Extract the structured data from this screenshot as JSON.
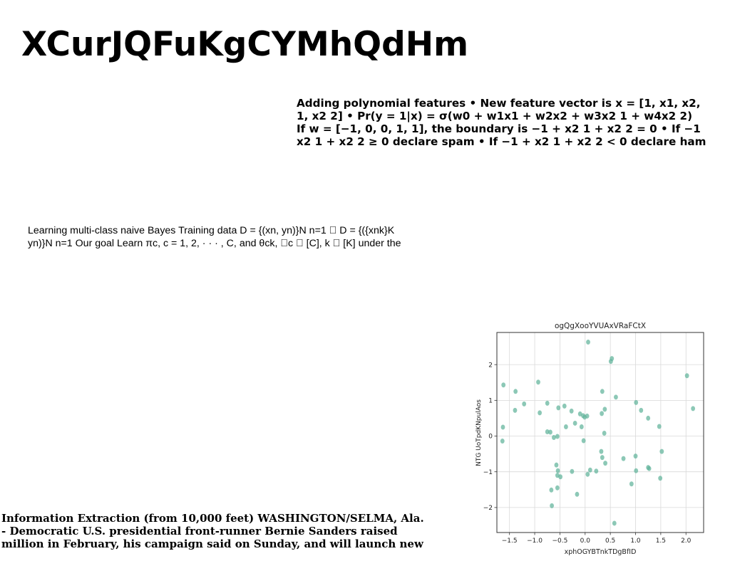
{
  "page": {
    "title": "XCurJQFuKgCYMhQdHm"
  },
  "polynomial_block": {
    "lines": [
      "Adding polynomial features • New feature vector is x = [1, x1, x2,",
      "1, x2 2] • Pr(y = 1|x) = σ(w0 + w1x1 + w2x2 + w3x2 1 + w4x2 2)",
      "If w = [−1, 0, 0, 1, 1], the boundary is −1 + x2 1 + x2 2 = 0 • If −1",
      "x2 1 + x2 2 ≥ 0 declare spam • If −1 + x2 1 + x2 2 < 0 declare ham"
    ]
  },
  "bayes_block": {
    "lines": [
      "Learning multi-class naive Bayes Training data D = {(xn, yn)}N n=1 ⃞ D = {({xnk}K",
      "yn)}N n=1 Our goal Learn πc, c = 1, 2, · · · , C, and θck, ⃞c ⃞ [C], k ⃞ [K] under the"
    ]
  },
  "info_block": {
    "lines": [
      "Information Extraction (from 10,000 feet) WASHINGTON/SELMA, Ala.",
      "- Democratic U.S. presidential front-runner Bernie Sanders raised",
      "million in February, his campaign said on Sunday, and will launch new"
    ]
  },
  "chart_data": {
    "type": "scatter",
    "title": "ogQgXooYVUAxVRaFCtX",
    "xlabel": "xphOGYBTnkTDgBfID",
    "ylabel": "NTG UoTpdKNpulAos",
    "xlim": [
      -1.75,
      2.35
    ],
    "ylim": [
      -2.7,
      2.9
    ],
    "xticks": [
      -1.5,
      -1.0,
      -0.5,
      0.0,
      0.5,
      1.0,
      1.5,
      2.0
    ],
    "xtick_labels": [
      "−1.5",
      "−1.0",
      "−0.5",
      "0.0",
      "0.5",
      "1.0",
      "1.5",
      "2.0"
    ],
    "yticks": [
      -2,
      -1,
      0,
      1,
      2
    ],
    "ytick_labels": [
      "−2",
      "−1",
      "0",
      "1",
      "2"
    ],
    "grid": true,
    "point_color": "#5fb39a",
    "series": [
      {
        "points": [
          [
            -1.62,
            1.43
          ],
          [
            -1.63,
            0.25
          ],
          [
            -1.64,
            -0.14
          ],
          [
            -1.38,
            1.25
          ],
          [
            -1.39,
            0.72
          ],
          [
            -1.21,
            0.9
          ],
          [
            -0.93,
            1.51
          ],
          [
            -0.9,
            0.65
          ],
          [
            -0.75,
            0.92
          ],
          [
            -0.75,
            0.12
          ],
          [
            -0.69,
            0.11
          ],
          [
            -0.62,
            -0.04
          ],
          [
            -0.55,
            -0.01
          ],
          [
            -0.53,
            0.79
          ],
          [
            -0.41,
            0.84
          ],
          [
            -0.38,
            0.26
          ],
          [
            -0.27,
            0.7
          ],
          [
            -0.2,
            0.36
          ],
          [
            -0.1,
            0.62
          ],
          [
            -0.07,
            0.26
          ],
          [
            -0.04,
            0.57
          ],
          [
            -0.01,
            0.53
          ],
          [
            0.04,
            0.56
          ],
          [
            0.06,
            2.63
          ],
          [
            0.51,
            2.09
          ],
          [
            0.53,
            2.17
          ],
          [
            0.61,
            1.09
          ],
          [
            0.34,
            1.25
          ],
          [
            0.33,
            0.63
          ],
          [
            0.39,
            0.75
          ],
          [
            0.38,
            0.08
          ],
          [
            -0.03,
            -0.13
          ],
          [
            0.32,
            -0.43
          ],
          [
            0.34,
            -0.6
          ],
          [
            0.4,
            -0.76
          ],
          [
            0.58,
            -2.44
          ],
          [
            0.1,
            -0.95
          ],
          [
            0.05,
            -1.07
          ],
          [
            0.22,
            -0.98
          ],
          [
            -0.26,
            -0.99
          ],
          [
            -0.54,
            -0.97
          ],
          [
            -0.57,
            -0.81
          ],
          [
            -0.55,
            -1.1
          ],
          [
            -0.49,
            -1.14
          ],
          [
            -0.55,
            -1.45
          ],
          [
            -0.67,
            -1.51
          ],
          [
            -0.66,
            -1.95
          ],
          [
            -0.16,
            -1.63
          ],
          [
            0.76,
            -0.63
          ],
          [
            0.92,
            -1.34
          ],
          [
            1.01,
            -0.97
          ],
          [
            1.0,
            -0.56
          ],
          [
            1.01,
            0.94
          ],
          [
            1.11,
            0.72
          ],
          [
            1.25,
            0.5
          ],
          [
            1.25,
            -0.88
          ],
          [
            1.27,
            -0.91
          ],
          [
            1.47,
            0.27
          ],
          [
            1.52,
            -0.43
          ],
          [
            1.49,
            -1.18
          ],
          [
            2.02,
            1.69
          ],
          [
            2.14,
            0.77
          ]
        ]
      }
    ]
  }
}
